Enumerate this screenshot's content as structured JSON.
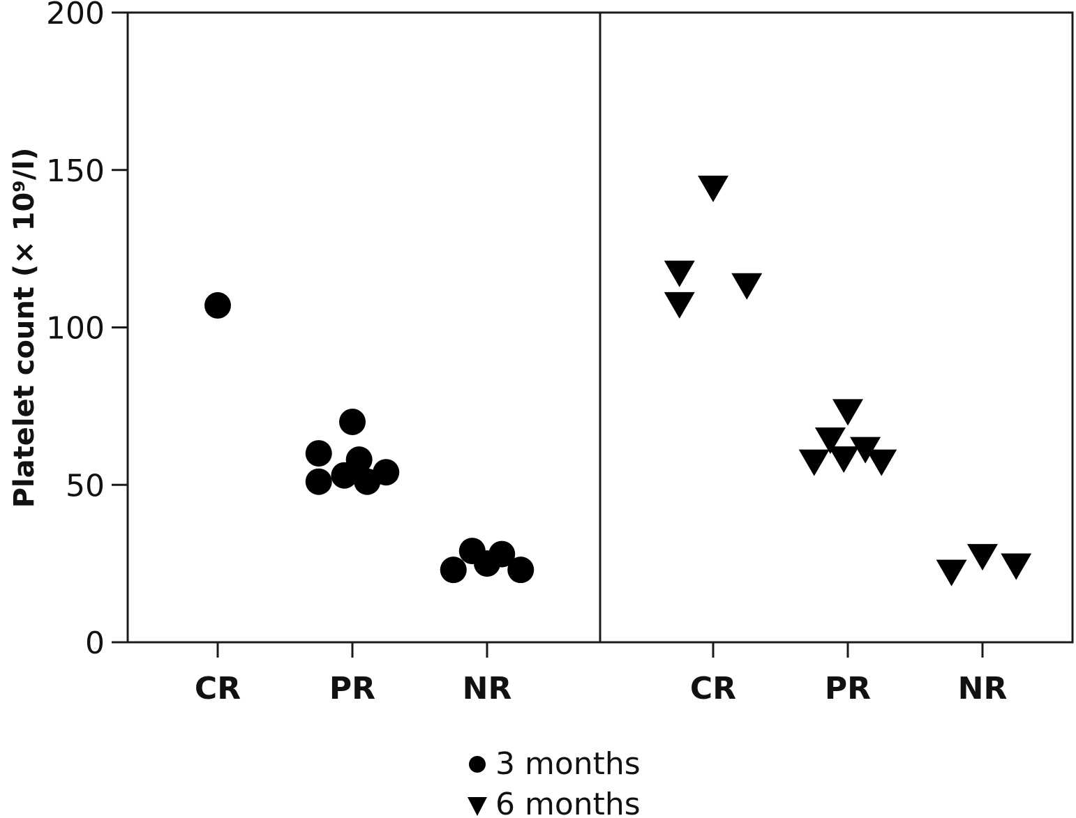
{
  "chart_data": {
    "type": "scatter",
    "ylabel": "Platelet count (× 10⁹/l)",
    "ylim": [
      0,
      200
    ],
    "yticks": [
      0,
      50,
      100,
      150,
      200
    ],
    "categories": [
      "CR",
      "PR",
      "NR"
    ],
    "legend": {
      "placement": "bottom-center"
    },
    "colors": {
      "marker": "#000000",
      "axis": "#1a1a1a"
    },
    "series": [
      {
        "name": "3 months",
        "marker": "circle",
        "points": [
          {
            "group": "CR",
            "offset": 0.0,
            "y": 107
          },
          {
            "group": "PR",
            "offset": -0.25,
            "y": 60
          },
          {
            "group": "PR",
            "offset": 0.0,
            "y": 70
          },
          {
            "group": "PR",
            "offset": -0.25,
            "y": 51
          },
          {
            "group": "PR",
            "offset": -0.06,
            "y": 53
          },
          {
            "group": "PR",
            "offset": 0.05,
            "y": 58
          },
          {
            "group": "PR",
            "offset": 0.11,
            "y": 51
          },
          {
            "group": "PR",
            "offset": 0.25,
            "y": 54
          },
          {
            "group": "NR",
            "offset": -0.25,
            "y": 23
          },
          {
            "group": "NR",
            "offset": -0.11,
            "y": 29
          },
          {
            "group": "NR",
            "offset": 0.0,
            "y": 25
          },
          {
            "group": "NR",
            "offset": 0.11,
            "y": 28
          },
          {
            "group": "NR",
            "offset": 0.25,
            "y": 23
          }
        ]
      },
      {
        "name": "6 months",
        "marker": "triangle-down",
        "points": [
          {
            "group": "CR",
            "offset": 0.0,
            "y": 144
          },
          {
            "group": "CR",
            "offset": -0.25,
            "y": 117
          },
          {
            "group": "CR",
            "offset": 0.25,
            "y": 113
          },
          {
            "group": "CR",
            "offset": -0.25,
            "y": 107
          },
          {
            "group": "PR",
            "offset": 0.0,
            "y": 73
          },
          {
            "group": "PR",
            "offset": -0.13,
            "y": 64
          },
          {
            "group": "PR",
            "offset": 0.13,
            "y": 61
          },
          {
            "group": "PR",
            "offset": -0.25,
            "y": 57
          },
          {
            "group": "PR",
            "offset": -0.03,
            "y": 58
          },
          {
            "group": "PR",
            "offset": 0.25,
            "y": 57
          },
          {
            "group": "NR",
            "offset": -0.23,
            "y": 22
          },
          {
            "group": "NR",
            "offset": 0.0,
            "y": 27
          },
          {
            "group": "NR",
            "offset": 0.25,
            "y": 24
          }
        ]
      }
    ]
  }
}
